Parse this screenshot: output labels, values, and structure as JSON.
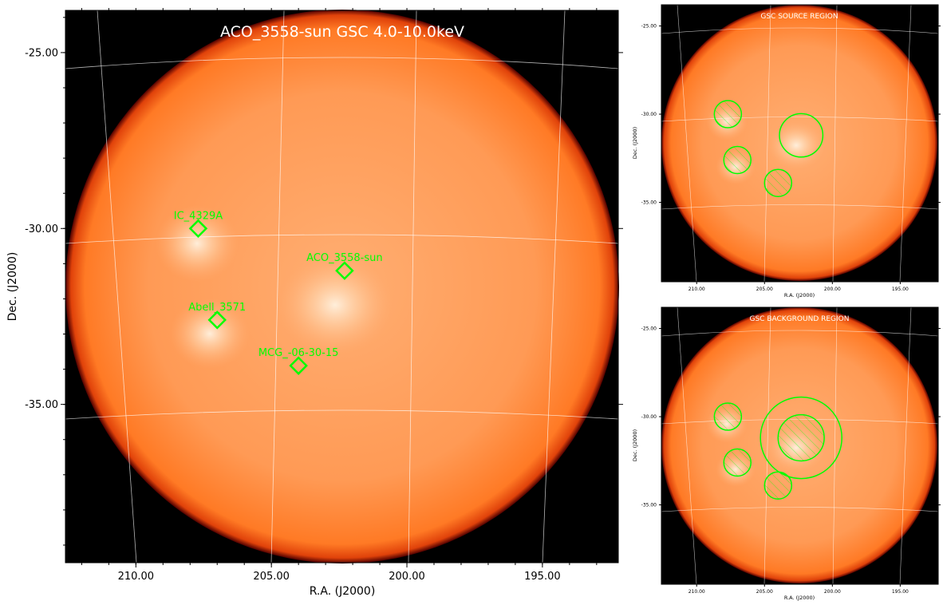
{
  "chart_data": [
    {
      "type": "heatmap",
      "title": "ACO_3558-sun GSC 4.0-10.0keV",
      "xlabel": "R.A. (J2000)",
      "ylabel": "Dec. (J2000)",
      "xlim": [
        212.6,
        192.2
      ],
      "ylim": [
        -39.5,
        -23.8
      ],
      "x_ticks": [
        210,
        205,
        200,
        195
      ],
      "x_tick_labels": [
        "210.00",
        "205.00",
        "200.00",
        "195.00"
      ],
      "y_ticks": [
        -25,
        -30,
        -35
      ],
      "y_tick_labels": [
        "-25.00",
        "-30.00",
        "-35.00"
      ],
      "grid": true,
      "colormap": "orange-hot",
      "sources": [
        {
          "name": "IC_4329A",
          "ra": 207.7,
          "dec": -30.0
        },
        {
          "name": "ACO_3558-sun",
          "ra": 202.3,
          "dec": -31.2
        },
        {
          "name": "Abell_3571",
          "ra": 207.0,
          "dec": -32.6
        },
        {
          "name": "MCG_-06-30-15",
          "ra": 204.0,
          "dec": -33.9
        }
      ]
    },
    {
      "type": "heatmap",
      "title": "GSC SOURCE REGION",
      "xlabel": "R.A. (J2000)",
      "ylabel": "Dec. (J2000)",
      "x_tick_labels": [
        "210.00",
        "205.00",
        "200.00",
        "195.00"
      ],
      "y_tick_labels": [
        "-25.00",
        "-30.00",
        "-35.00"
      ],
      "grid": true,
      "regions": [
        {
          "kind": "source",
          "ra": 202.3,
          "dec": -31.2,
          "radius_deg": 1.6
        },
        {
          "kind": "excluded",
          "ra": 207.7,
          "dec": -30.0,
          "radius_deg": 1.0
        },
        {
          "kind": "excluded",
          "ra": 207.0,
          "dec": -32.6,
          "radius_deg": 1.0
        },
        {
          "kind": "excluded",
          "ra": 204.0,
          "dec": -33.9,
          "radius_deg": 1.0
        }
      ]
    },
    {
      "type": "heatmap",
      "title": "GSC BACKGROUND REGION",
      "xlabel": "R.A. (J2000)",
      "ylabel": "Dec. (J2000)",
      "x_tick_labels": [
        "210.00",
        "205.00",
        "200.00",
        "195.00"
      ],
      "y_tick_labels": [
        "-25.00",
        "-30.00",
        "-35.00"
      ],
      "grid": true,
      "regions": [
        {
          "kind": "background-outer",
          "ra": 202.3,
          "dec": -31.2,
          "radius_deg": 3.0
        },
        {
          "kind": "excluded",
          "ra": 202.3,
          "dec": -31.2,
          "radius_deg": 1.7
        },
        {
          "kind": "excluded",
          "ra": 207.7,
          "dec": -30.0,
          "radius_deg": 1.0
        },
        {
          "kind": "excluded",
          "ra": 207.0,
          "dec": -32.6,
          "radius_deg": 1.0
        },
        {
          "kind": "excluded",
          "ra": 204.0,
          "dec": -33.9,
          "radius_deg": 1.0
        }
      ]
    }
  ],
  "colors": {
    "marker": "#00ff00",
    "title": "#ffffff",
    "grid": "#ffffff",
    "background": "#000000",
    "disk_center": "#ffa96b",
    "disk_edge": "#ff6a0a"
  }
}
